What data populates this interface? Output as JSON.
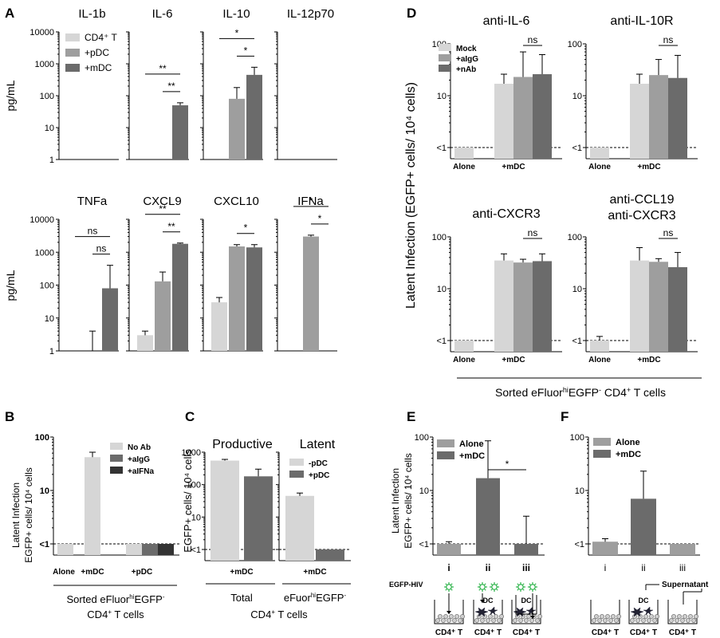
{
  "colors": {
    "light": "#d6d6d6",
    "mid": "#9e9e9e",
    "dark": "#6b6b6b",
    "darkest": "#333333"
  },
  "panel_letters": [
    "A",
    "B",
    "C",
    "D",
    "E",
    "F"
  ],
  "panel_a": {
    "ylabel": "pg/mL",
    "ticks": [
      "1",
      "10",
      "100",
      "1000",
      "10000"
    ],
    "legend": [
      {
        "label": "CD4⁺ T",
        "color": "light"
      },
      {
        "label": "+pDC",
        "color": "mid"
      },
      {
        "label": "+mDC",
        "color": "dark"
      }
    ]
  },
  "panel_b": {
    "ylabel": [
      "Latent Infection",
      "EGFP+ cells/ 10⁴ cells"
    ],
    "ticks": [
      "<1",
      "10",
      "100"
    ],
    "legend": [
      {
        "label": "No Ab",
        "color": "light"
      },
      {
        "label": "+aIgG",
        "color": "dark"
      },
      {
        "label": "+aIFNa",
        "color": "darkest"
      }
    ],
    "xlabels": [
      "Alone",
      "+mDC",
      "+pDC"
    ],
    "footer": [
      "Sorted eFluor",
      "hi",
      "EGFP",
      "-",
      "CD4",
      "+",
      " T cells"
    ]
  },
  "panel_c": {
    "ylabel": "EGFP+ cells/ 10⁴ cells",
    "ticks": [
      "<1",
      "10",
      "100",
      "1000"
    ],
    "titles": [
      "Productive",
      "Latent"
    ],
    "legend": [
      {
        "label": "-pDC",
        "color": "light"
      },
      {
        "label": "+pDC",
        "color": "dark"
      }
    ],
    "xlabels": [
      "+mDC",
      "+mDC"
    ],
    "footer_total": "Total",
    "footer_sorted": [
      "eFuor",
      "hi",
      "EGFP",
      "-"
    ],
    "footer_cells": [
      "CD4",
      "+",
      " T cells"
    ]
  },
  "panel_d": {
    "ylabel": "Latent Infection (EGFP+ cells/ 10⁴ cells)",
    "ticks": [
      "<1",
      "10",
      "100"
    ],
    "legend": [
      {
        "label": "Mock",
        "color": "light"
      },
      {
        "label": "+aIgG",
        "color": "mid"
      },
      {
        "label": "+nAb",
        "color": "dark"
      }
    ],
    "xlabels": [
      "Alone",
      "+mDC"
    ],
    "footer": [
      "Sorted eFluor",
      "hi",
      "EGFP",
      "-",
      " CD4",
      "+",
      " T cells"
    ]
  },
  "panel_e": {
    "ylabel": [
      "Latent Infection",
      "EGFP+ cells/ 10⁴ cells"
    ],
    "ticks": [
      "<1",
      "10",
      "100"
    ],
    "legend": [
      {
        "label": "Alone",
        "color": "mid"
      },
      {
        "label": "+mDC",
        "color": "dark"
      }
    ],
    "roman": [
      "i",
      "ii",
      "iii"
    ],
    "hiv_label": "EGFP-HIV",
    "well_labels": [
      "CD4⁺ T",
      "CD4⁺ T",
      "CD4⁺ T"
    ],
    "dc_label": "DC"
  },
  "panel_f": {
    "ticks": [
      "<1",
      "10",
      "100"
    ],
    "legend": [
      {
        "label": "Alone",
        "color": "mid"
      },
      {
        "label": "+mDC",
        "color": "dark"
      }
    ],
    "roman": [
      "i",
      "ii",
      "iii"
    ],
    "supernatant": "Supernatant",
    "dc_label": "DC",
    "well_labels": [
      "CD4⁺ T",
      "CD4⁺ T",
      "CD4⁺ T"
    ]
  },
  "chart_data": [
    {
      "id": "A-IL-1b",
      "type": "bar",
      "title": "IL-1b",
      "scale": "log",
      "ylim": [
        1,
        10000
      ],
      "series": [
        {
          "name": "CD4⁺ T",
          "values": [
            1
          ],
          "err": [
            0
          ]
        },
        {
          "name": "+pDC",
          "values": [
            1
          ],
          "err": [
            0
          ]
        },
        {
          "name": "+mDC",
          "values": [
            1
          ],
          "err": [
            0
          ]
        }
      ]
    },
    {
      "id": "A-IL-6",
      "type": "bar",
      "title": "IL-6",
      "scale": "log",
      "ylim": [
        1,
        10000
      ],
      "series": [
        {
          "name": "CD4⁺ T",
          "values": [
            1
          ],
          "err": [
            0
          ]
        },
        {
          "name": "+pDC",
          "values": [
            1
          ],
          "err": [
            0
          ]
        },
        {
          "name": "+mDC",
          "values": [
            50
          ],
          "err": [
            60
          ]
        }
      ],
      "annotations": [
        "**",
        "**"
      ]
    },
    {
      "id": "A-IL-10",
      "type": "bar",
      "title": "IL-10",
      "scale": "log",
      "ylim": [
        1,
        10000
      ],
      "series": [
        {
          "name": "CD4⁺ T",
          "values": [
            1
          ],
          "err": [
            0
          ]
        },
        {
          "name": "+pDC",
          "values": [
            80
          ],
          "err": [
            180
          ]
        },
        {
          "name": "+mDC",
          "values": [
            450
          ],
          "err": [
            780
          ]
        }
      ],
      "annotations": [
        "*",
        "*"
      ]
    },
    {
      "id": "A-IL-12p70",
      "type": "bar",
      "title": "IL-12p70",
      "scale": "log",
      "ylim": [
        1,
        10000
      ],
      "series": [
        {
          "name": "CD4⁺ T",
          "values": [
            1
          ],
          "err": [
            0
          ]
        },
        {
          "name": "+pDC",
          "values": [
            1
          ],
          "err": [
            0
          ]
        },
        {
          "name": "+mDC",
          "values": [
            1
          ],
          "err": [
            0
          ]
        }
      ]
    },
    {
      "id": "A-TNFa",
      "type": "bar",
      "title": "TNFa",
      "scale": "log",
      "ylim": [
        1,
        10000
      ],
      "series": [
        {
          "name": "CD4⁺ T",
          "values": [
            1
          ],
          "err": [
            0
          ]
        },
        {
          "name": "+pDC",
          "values": [
            1
          ],
          "err": [
            4
          ]
        },
        {
          "name": "+mDC",
          "values": [
            80
          ],
          "err": [
            400
          ]
        }
      ],
      "annotations": [
        "ns",
        "ns"
      ]
    },
    {
      "id": "A-CXCL9",
      "type": "bar",
      "title": "CXCL9",
      "scale": "log",
      "ylim": [
        1,
        10000
      ],
      "series": [
        {
          "name": "CD4⁺ T",
          "values": [
            3
          ],
          "err": [
            4
          ]
        },
        {
          "name": "+pDC",
          "values": [
            130
          ],
          "err": [
            250
          ]
        },
        {
          "name": "+mDC",
          "values": [
            1800
          ],
          "err": [
            1900
          ]
        }
      ],
      "annotations": [
        "**",
        "**"
      ]
    },
    {
      "id": "A-CXCL10",
      "type": "bar",
      "title": "CXCL10",
      "scale": "log",
      "ylim": [
        1,
        10000
      ],
      "series": [
        {
          "name": "CD4⁺ T",
          "values": [
            30
          ],
          "err": [
            42
          ]
        },
        {
          "name": "+pDC",
          "values": [
            1500
          ],
          "err": [
            1700
          ]
        },
        {
          "name": "+mDC",
          "values": [
            1400
          ],
          "err": [
            1700
          ]
        }
      ],
      "annotations": [
        "*"
      ]
    },
    {
      "id": "A-IFNa",
      "type": "bar",
      "title": "IFNa",
      "scale": "log",
      "ylim": [
        1,
        10000
      ],
      "series": [
        {
          "name": "CD4⁺ T",
          "values": [
            1
          ],
          "err": [
            0
          ]
        },
        {
          "name": "+pDC",
          "values": [
            3000
          ],
          "err": [
            3300
          ]
        },
        {
          "name": "+mDC",
          "values": [
            1
          ],
          "err": [
            0
          ]
        }
      ],
      "annotations": [
        "*",
        "*"
      ]
    },
    {
      "id": "B",
      "type": "bar",
      "scale": "log",
      "ylim": [
        1,
        100
      ],
      "categories": [
        "Alone",
        "+mDC",
        "+pDC"
      ],
      "bars": [
        {
          "group": "Alone",
          "name": "No Ab",
          "value": 1
        },
        {
          "group": "+mDC",
          "name": "No Ab",
          "value": 42,
          "err": 52
        },
        {
          "group": "+pDC",
          "name": "No Ab",
          "value": 1
        },
        {
          "group": "+pDC",
          "name": "+aIgG",
          "value": 1
        },
        {
          "group": "+pDC",
          "name": "+aIFNa",
          "value": 1
        }
      ]
    },
    {
      "id": "C",
      "type": "bar",
      "scale": "log",
      "ylim": [
        1,
        1000
      ],
      "titles": [
        "Productive",
        "Latent"
      ],
      "series": [
        {
          "name": "-pDC",
          "values": [
            550,
            45
          ],
          "err": [
            600,
            55
          ]
        },
        {
          "name": "+pDC",
          "values": [
            180,
            1
          ],
          "err": [
            300,
            0
          ]
        }
      ]
    },
    {
      "id": "D-anti-IL-6",
      "type": "bar",
      "title": "anti-IL-6",
      "scale": "log",
      "ylim": [
        1,
        100
      ],
      "bars": [
        {
          "group": "Alone",
          "value": 1
        },
        {
          "group": "+mDC",
          "name": "Mock",
          "value": 17,
          "err": 26
        },
        {
          "group": "+mDC",
          "name": "+aIgG",
          "value": 23,
          "err": 70
        },
        {
          "group": "+mDC",
          "name": "+nAb",
          "value": 26,
          "err": 62
        }
      ],
      "annotations": [
        "ns"
      ]
    },
    {
      "id": "D-anti-IL-10R",
      "type": "bar",
      "title": "anti-IL-10R",
      "scale": "log",
      "ylim": [
        1,
        100
      ],
      "bars": [
        {
          "group": "Alone",
          "value": 1
        },
        {
          "group": "+mDC",
          "name": "Mock",
          "value": 17,
          "err": 26
        },
        {
          "group": "+mDC",
          "name": "+aIgG",
          "value": 25,
          "err": 50
        },
        {
          "group": "+mDC",
          "name": "+nAb",
          "value": 22,
          "err": 60
        }
      ],
      "annotations": [
        "ns"
      ]
    },
    {
      "id": "D-anti-CXCR3",
      "type": "bar",
      "title": "anti-CXCR3",
      "scale": "log",
      "ylim": [
        1,
        100
      ],
      "bars": [
        {
          "group": "Alone",
          "value": 1
        },
        {
          "group": "+mDC",
          "name": "Mock",
          "value": 35,
          "err": 47
        },
        {
          "group": "+mDC",
          "name": "+aIgG",
          "value": 32,
          "err": 37
        },
        {
          "group": "+mDC",
          "name": "+nAb",
          "value": 34,
          "err": 47
        }
      ],
      "annotations": [
        "ns"
      ]
    },
    {
      "id": "D-anti-CCL19-anti-CXCR3",
      "type": "bar",
      "title": [
        "anti-CCL19",
        "anti-CXCR3"
      ],
      "scale": "log",
      "ylim": [
        1,
        100
      ],
      "bars": [
        {
          "group": "Alone",
          "value": 1,
          "err": 1.2
        },
        {
          "group": "+mDC",
          "name": "Mock",
          "value": 35,
          "err": 62
        },
        {
          "group": "+mDC",
          "name": "+aIgG",
          "value": 33,
          "err": 38
        },
        {
          "group": "+mDC",
          "name": "+nAb",
          "value": 26,
          "err": 50
        }
      ],
      "annotations": [
        "ns"
      ]
    },
    {
      "id": "E",
      "type": "bar",
      "scale": "log",
      "ylim": [
        1,
        100
      ],
      "categories": [
        "i",
        "ii",
        "iii"
      ],
      "bars": [
        {
          "group": "i",
          "name": "Alone",
          "value": 1,
          "err": 1.1
        },
        {
          "group": "ii",
          "name": "+mDC",
          "value": 17,
          "err": 85
        },
        {
          "group": "iii",
          "name": "+mDC",
          "value": 1,
          "err": 3.3
        }
      ],
      "annotations": [
        "*"
      ]
    },
    {
      "id": "F",
      "type": "bar",
      "scale": "log",
      "ylim": [
        1,
        100
      ],
      "categories": [
        "i",
        "ii",
        "iii"
      ],
      "bars": [
        {
          "group": "i",
          "name": "Alone",
          "value": 1.1,
          "err": 1.25
        },
        {
          "group": "ii",
          "name": "+mDC",
          "value": 7,
          "err": 23
        },
        {
          "group": "iii",
          "name": "Alone",
          "value": 1
        }
      ]
    }
  ]
}
